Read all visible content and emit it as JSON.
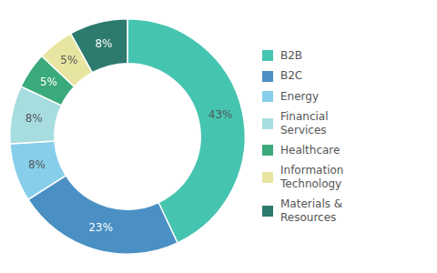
{
  "chart_data": {
    "type": "doughnut",
    "categories": [
      "B2B",
      "B2C",
      "Energy",
      "Financial\nServices",
      "Healthcare",
      "Information\nTechnology",
      "Materials &\nResources"
    ],
    "values": [
      43,
      23,
      8,
      8,
      5,
      5,
      8
    ],
    "value_labels": [
      "43%",
      "23%",
      "8%",
      "8%",
      "5%",
      "5%",
      "8%"
    ],
    "colors": [
      "#45C4B0",
      "#4A90C4",
      "#87CEEB",
      "#A8DDE0",
      "#3BAA7A",
      "#E8E5A0",
      "#2D7A6F"
    ],
    "data_labels": true,
    "legend": "right"
  }
}
